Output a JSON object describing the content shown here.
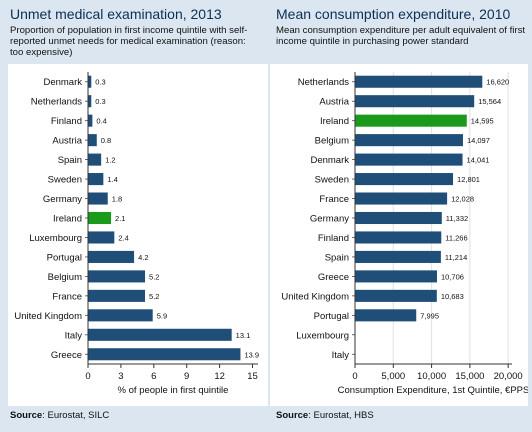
{
  "left": {
    "title": "Unmet medical examination, 2013",
    "subtitle": "Proportion of population in first income quintile with self-reported unmet needs for medical examination (reason: too expensive)",
    "source_label": "Source",
    "source_text": ": Eurostat, SILC"
  },
  "right": {
    "title": "Mean consumption expenditure, 2010",
    "subtitle": "Mean consumption expenditure per adult equivalent of first income quintile in purchasing power standard",
    "source_label": "Source",
    "source_text": ": Eurostat, HBS"
  },
  "colors": {
    "bar": "#1f4e79",
    "highlight": "#1a9a1a",
    "panel": "#ffffff",
    "background": "#dbe6f0"
  },
  "chart_data": [
    {
      "type": "bar",
      "orientation": "horizontal",
      "categories": [
        "Denmark",
        "Netherlands",
        "Finland",
        "Austria",
        "Spain",
        "Sweden",
        "Germany",
        "Ireland",
        "Luxembourg",
        "Portugal",
        "Belgium",
        "France",
        "United Kingdom",
        "Italy",
        "Greece"
      ],
      "values": [
        0.3,
        0.3,
        0.4,
        0.8,
        1.2,
        1.4,
        1.8,
        2.1,
        2.4,
        4.2,
        5.2,
        5.2,
        5.9,
        13.1,
        13.9
      ],
      "value_labels": [
        "0.3",
        "0.3",
        "0.4",
        "0.8",
        "1.2",
        "1.4",
        "1.8",
        "2.1",
        "2.4",
        "4.2",
        "5.2",
        "5.2",
        "5.9",
        "13.1",
        "13.9"
      ],
      "highlight": "Ireland",
      "xlabel": "% of people in first quintile",
      "xlim": [
        0,
        15.5
      ],
      "xticks": [
        0,
        3,
        6,
        9,
        12,
        15
      ],
      "xtick_labels": [
        "0",
        "3",
        "6",
        "9",
        "12",
        "15"
      ],
      "grid": false
    },
    {
      "type": "bar",
      "orientation": "horizontal",
      "categories": [
        "Netherlands",
        "Austria",
        "Ireland",
        "Belgium",
        "Denmark",
        "Sweden",
        "France",
        "Germany",
        "Finland",
        "Spain",
        "Greece",
        "United Kingdom",
        "Portugal",
        "Luxembourg",
        "Italy"
      ],
      "values": [
        16620,
        15564,
        14595,
        14097,
        14041,
        12801,
        12028,
        11332,
        11266,
        11214,
        10706,
        10683,
        7995,
        null,
        null
      ],
      "value_labels": [
        "16,620",
        "15,564",
        "14,595",
        "14,097",
        "14,041",
        "12,801",
        "12,028",
        "11,332",
        "11,266",
        "11,214",
        "10,706",
        "10,683",
        "7,995",
        "",
        ""
      ],
      "highlight": "Ireland",
      "xlabel": "Consumption Expenditure, 1st Quintile, €PPS",
      "xlim": [
        0,
        20500
      ],
      "xticks": [
        0,
        5000,
        10000,
        15000,
        20000
      ],
      "xtick_labels": [
        "0",
        "5,000",
        "10,000",
        "15,000",
        "20,000"
      ],
      "grid": true
    }
  ]
}
